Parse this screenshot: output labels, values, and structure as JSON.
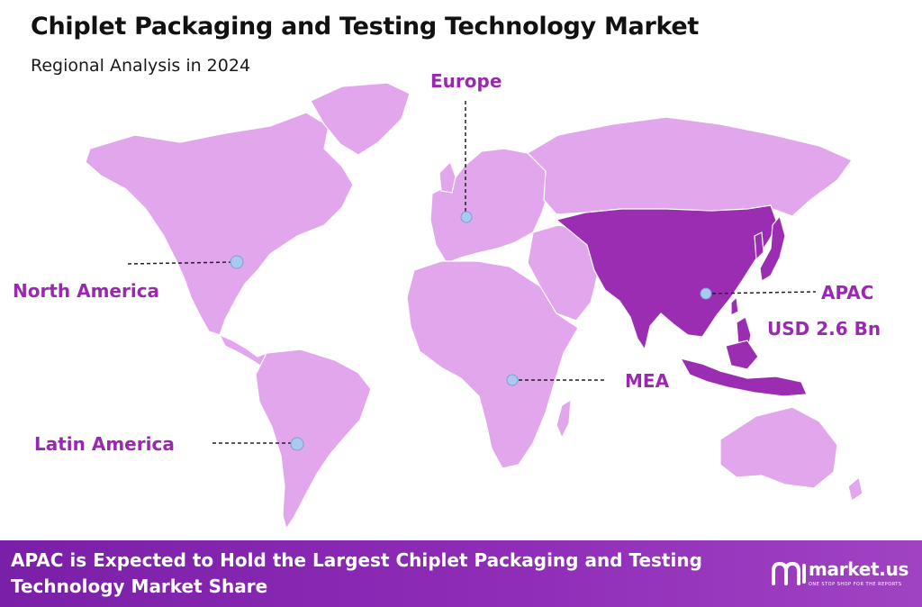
{
  "header": {
    "title": "Chiplet Packaging and Testing Technology Market",
    "subtitle": "Regional Analysis in 2024"
  },
  "colors": {
    "land": "#e2a6ec",
    "highlight": "#9b2db3",
    "label": "#9b28b0",
    "marker": "#a9c9f0",
    "footer": "#8a28b5"
  },
  "regions": {
    "europe": {
      "label": "Europe"
    },
    "north_america": {
      "label": "North America"
    },
    "apac": {
      "label": "APAC",
      "value": "USD 2.6 Bn",
      "highlighted": true
    },
    "mea": {
      "label": "MEA"
    },
    "latin_america": {
      "label": "Latin America"
    }
  },
  "footer": {
    "text": "APAC is Expected to Hold the Largest Chiplet Packaging and Testing Technology Market Share",
    "brand_name": "market.us",
    "brand_tagline": "ONE STOP SHOP FOR THE REPORTS",
    "brand_icon": "market-us-logo-icon"
  }
}
